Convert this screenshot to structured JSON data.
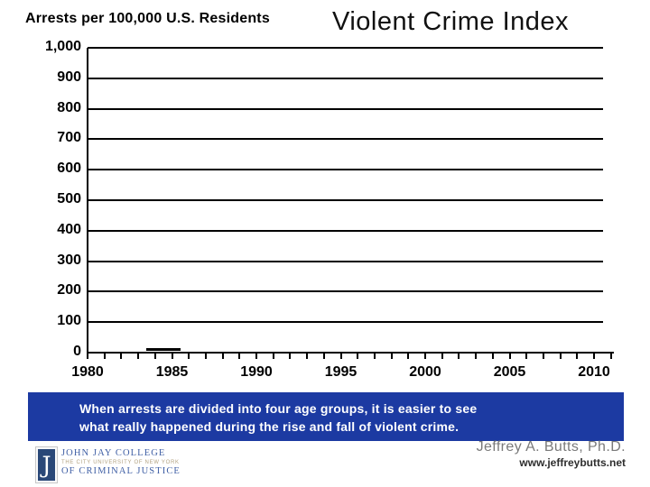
{
  "page": {
    "background": "#ffffff"
  },
  "titles": {
    "axis_title": "Arrests per 100,000 U.S. Residents",
    "chart_title": "Violent Crime Index"
  },
  "chart_data": {
    "type": "line",
    "title": "Violent Crime Index",
    "ylabel": "Arrests per 100,000 U.S. Residents",
    "xlabel": "",
    "ylim": [
      0,
      1000
    ],
    "ytick_step": 100,
    "ytick_labels_top_to_bottom": [
      "1,000",
      "900",
      "800",
      "700",
      "600",
      "500",
      "400",
      "300",
      "200",
      "100",
      "0"
    ],
    "xlim": [
      1980,
      2011
    ],
    "xticks_labeled": [
      1980,
      1985,
      1990,
      1995,
      2000,
      2005,
      2010
    ],
    "xtick_minor_every_years": 1,
    "grid": "horizontal-only",
    "legend": "none",
    "plot_empty": true,
    "series": [
      {
        "name": "violent-crime-index",
        "note": "only a short fragment of the line is visible just above the x-axis",
        "x": [
          1983.5,
          1985.5
        ],
        "y": [
          9,
          9
        ],
        "color": "#000000"
      }
    ]
  },
  "banner": {
    "line1": "When arrests are divided into four age groups, it is easier to see",
    "line2": "what really happened during the rise and fall of violent crime.",
    "background": "#1c3aa2",
    "text_color": "#ffffff"
  },
  "credit": {
    "author": "Jeffrey A. Butts, Ph.D.",
    "author_color": "#7a7a7a",
    "website": "www.jeffreybutts.net",
    "website_color": "#2e2e2e"
  },
  "logo": {
    "monogram": "J",
    "line1": "JOHN JAY COLLEGE",
    "line2": "THE CITY UNIVERSITY OF NEW YORK",
    "line3": "OF CRIMINAL JUSTICE",
    "square_color": "#2a4878",
    "text_color": "#3f5fa5",
    "tagline_color": "#b3a383"
  }
}
